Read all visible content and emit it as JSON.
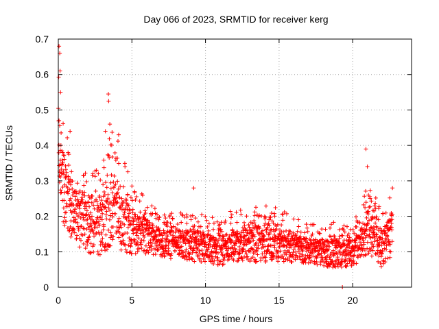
{
  "chart_data": {
    "type": "scatter",
    "title": "Day 066 of 2023, SRMTID for receiver kerg",
    "xlabel": "GPS time / hours",
    "ylabel": "SRMTID / TECUs",
    "xlim": [
      0,
      24
    ],
    "ylim": [
      0,
      0.7
    ],
    "xticks": [
      0,
      5,
      10,
      15,
      20
    ],
    "xtick_labels": [
      "0",
      "5",
      "10",
      "15",
      "20"
    ],
    "yticks": [
      0,
      0.1,
      0.2,
      0.3,
      0.4,
      0.5,
      0.6,
      0.7
    ],
    "ytick_labels": [
      "0",
      "0.1",
      "0.2",
      "0.3",
      "0.4",
      "0.5",
      "0.6",
      "0.7"
    ],
    "grid": true,
    "marker": "+",
    "series": [
      {
        "name": "SRMTID",
        "color": "#ff0000",
        "envelope": [
          {
            "t": 0.0,
            "lo": 0.15,
            "hi": 0.68
          },
          {
            "t": 0.5,
            "lo": 0.12,
            "hi": 0.45
          },
          {
            "t": 1.0,
            "lo": 0.08,
            "hi": 0.38
          },
          {
            "t": 2.0,
            "lo": 0.06,
            "hi": 0.32
          },
          {
            "t": 3.0,
            "lo": 0.05,
            "hi": 0.35
          },
          {
            "t": 3.5,
            "lo": 0.06,
            "hi": 0.46
          },
          {
            "t": 4.0,
            "lo": 0.06,
            "hi": 0.42
          },
          {
            "t": 5.0,
            "lo": 0.06,
            "hi": 0.3
          },
          {
            "t": 6.0,
            "lo": 0.07,
            "hi": 0.25
          },
          {
            "t": 7.0,
            "lo": 0.06,
            "hi": 0.21
          },
          {
            "t": 8.0,
            "lo": 0.06,
            "hi": 0.21
          },
          {
            "t": 9.0,
            "lo": 0.05,
            "hi": 0.22
          },
          {
            "t": 10.0,
            "lo": 0.05,
            "hi": 0.2
          },
          {
            "t": 11.0,
            "lo": 0.04,
            "hi": 0.2
          },
          {
            "t": 12.0,
            "lo": 0.05,
            "hi": 0.22
          },
          {
            "t": 13.0,
            "lo": 0.05,
            "hi": 0.22
          },
          {
            "t": 14.0,
            "lo": 0.04,
            "hi": 0.25
          },
          {
            "t": 15.0,
            "lo": 0.05,
            "hi": 0.22
          },
          {
            "t": 16.0,
            "lo": 0.05,
            "hi": 0.2
          },
          {
            "t": 17.0,
            "lo": 0.05,
            "hi": 0.18
          },
          {
            "t": 18.0,
            "lo": 0.04,
            "hi": 0.18
          },
          {
            "t": 19.0,
            "lo": 0.03,
            "hi": 0.19
          },
          {
            "t": 20.0,
            "lo": 0.04,
            "hi": 0.18
          },
          {
            "t": 20.5,
            "lo": 0.05,
            "hi": 0.22
          },
          {
            "t": 21.0,
            "lo": 0.06,
            "hi": 0.3
          },
          {
            "t": 22.0,
            "lo": 0.03,
            "hi": 0.22
          },
          {
            "t": 22.7,
            "lo": 0.06,
            "hi": 0.28
          }
        ],
        "highlights": [
          {
            "x": 0.05,
            "y": 0.68
          },
          {
            "x": 0.1,
            "y": 0.66
          },
          {
            "x": 0.12,
            "y": 0.61
          },
          {
            "x": 0.15,
            "y": 0.55
          },
          {
            "x": 0.05,
            "y": 0.47
          },
          {
            "x": 0.8,
            "y": 0.44
          },
          {
            "x": 3.4,
            "y": 0.545
          },
          {
            "x": 3.42,
            "y": 0.525
          },
          {
            "x": 3.5,
            "y": 0.46
          },
          {
            "x": 3.2,
            "y": 0.44
          },
          {
            "x": 4.1,
            "y": 0.43
          },
          {
            "x": 9.2,
            "y": 0.28
          },
          {
            "x": 20.9,
            "y": 0.39
          },
          {
            "x": 21.0,
            "y": 0.34
          },
          {
            "x": 22.7,
            "y": 0.28
          },
          {
            "x": 19.3,
            "y": 0.0
          }
        ]
      }
    ]
  }
}
